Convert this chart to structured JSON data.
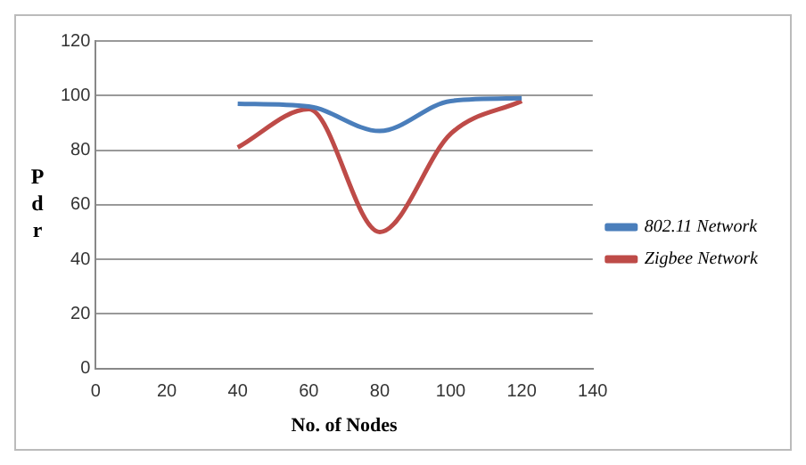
{
  "chart_data": {
    "type": "line",
    "xlabel": "No. of Nodes",
    "ylabel": "Pdr",
    "x": [
      40,
      60,
      80,
      100,
      120
    ],
    "series": [
      {
        "name": "802.11 Network",
        "color": "#4a7ebb",
        "values": [
          97,
          96,
          87,
          98,
          99
        ]
      },
      {
        "name": "Zigbee Network",
        "color": "#be4b48",
        "values": [
          81,
          95,
          50,
          86,
          98
        ]
      }
    ],
    "xlim": [
      0,
      140
    ],
    "xticks": [
      0,
      20,
      40,
      60,
      80,
      100,
      120,
      140
    ],
    "ylim": [
      0,
      120
    ],
    "yticks": [
      0,
      20,
      40,
      60,
      80,
      100,
      120
    ],
    "grid": "y",
    "legend": "right",
    "marker": "none",
    "line_style": "solid"
  }
}
